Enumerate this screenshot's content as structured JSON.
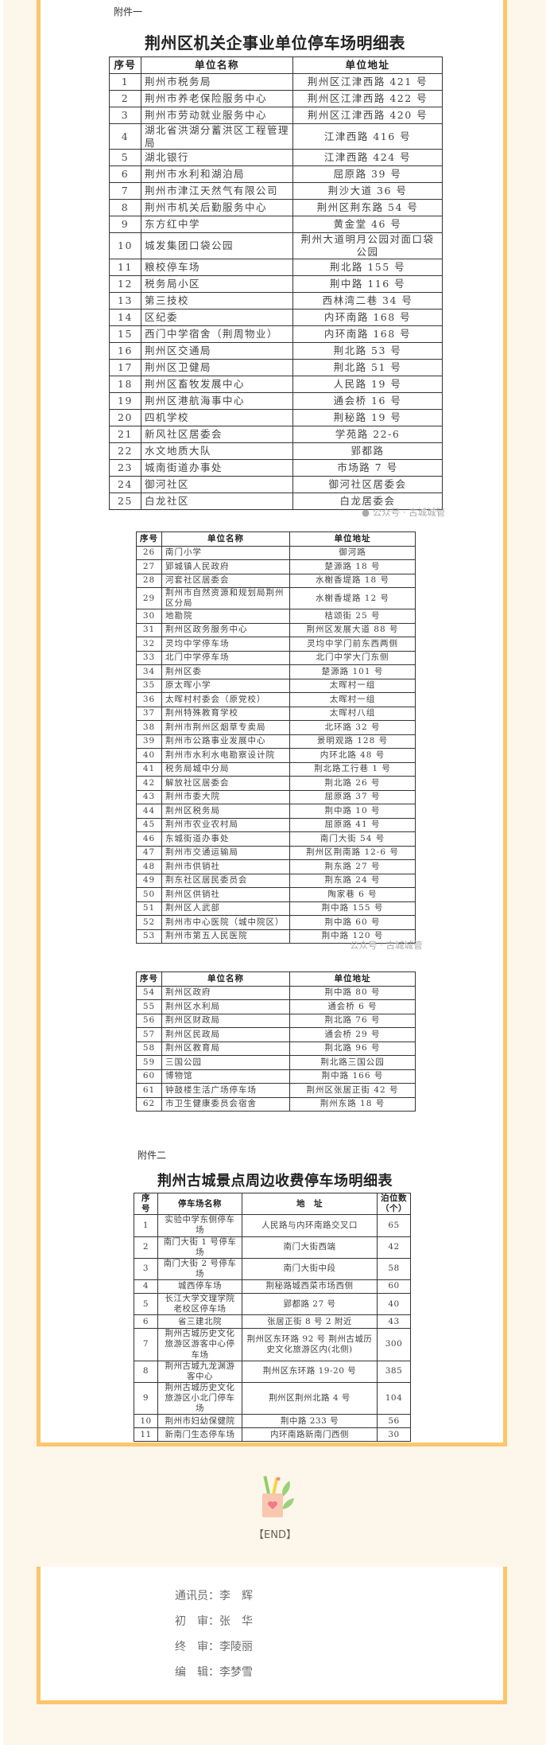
{
  "colors": {
    "accent_border": "#fcc66c",
    "page_background": "#fdf6ea"
  },
  "annex1": {
    "label": "附件一",
    "title": "荆州区机关企事业单位停车场明细表",
    "headers": [
      "序号",
      "单位名称",
      "单位地址"
    ],
    "rows": [
      [
        "1",
        "荆州市税务局",
        "荆州区江津西路 421 号"
      ],
      [
        "2",
        "荆州市养老保险服务中心",
        "荆州区江津西路 422 号"
      ],
      [
        "3",
        "荆州市劳动就业服务中心",
        "荆州区江津西路 420 号"
      ],
      [
        "4",
        "湖北省洪湖分蓄洪区工程管理局",
        "江津西路 416 号"
      ],
      [
        "5",
        "湖北银行",
        "江津西路 424 号"
      ],
      [
        "6",
        "荆州市水利和湖泊局",
        "屈原路 39 号"
      ],
      [
        "7",
        "荆州市津江天然气有限公司",
        "荆沙大道 36 号"
      ],
      [
        "8",
        "荆州市机关后勤服务中心",
        "荆州区荆东路 54 号"
      ],
      [
        "9",
        "东方红中学",
        "黄金堂 46 号"
      ],
      [
        "10",
        "城发集团口袋公园",
        "荆州大道明月公园对面口袋公园"
      ],
      [
        "11",
        "粮校停车场",
        "荆北路 155 号"
      ],
      [
        "12",
        "税务局小区",
        "荆中路 116 号"
      ],
      [
        "13",
        "第三技校",
        "西林湾二巷 34 号"
      ],
      [
        "14",
        "区纪委",
        "内环南路 168 号"
      ],
      [
        "15",
        "西门中学宿舍（荆周物业）",
        "内环南路 168 号"
      ],
      [
        "16",
        "荆州区交通局",
        "荆北路 53 号"
      ],
      [
        "17",
        "荆州区卫健局",
        "荆北路 51 号"
      ],
      [
        "18",
        "荆州区畜牧发展中心",
        "人民路 19 号"
      ],
      [
        "19",
        "荆州区港航海事中心",
        "通会桥 16 号"
      ],
      [
        "20",
        "四机学校",
        "荆秘路 19 号"
      ],
      [
        "21",
        "新风社区居委会",
        "学苑路 22-6"
      ],
      [
        "22",
        "水文地质大队",
        "郢都路"
      ],
      [
        "23",
        "城南街道办事处",
        "市场路 7 号"
      ],
      [
        "24",
        "御河社区",
        "御河社区居委会"
      ],
      [
        "25",
        "白龙社区",
        "白龙居委会"
      ]
    ],
    "rows_b": [
      [
        "26",
        "南门小学",
        "御河路"
      ],
      [
        "27",
        "郢城镇人民政府",
        "楚源路 18 号"
      ],
      [
        "28",
        "河套社区居委会",
        "水榭香堤路 18 号"
      ],
      [
        "29",
        "荆州市自然资源和规划局荆州区分局",
        "水榭香堤路 12 号"
      ],
      [
        "30",
        "地勘院",
        "桔颂街 25 号"
      ],
      [
        "31",
        "荆州区政务服务中心",
        "荆州区发展大道 88 号"
      ],
      [
        "32",
        "灵均中学停车场",
        "灵均中学门前东西两侧"
      ],
      [
        "33",
        "北门中学停车场",
        "北门中学大门东侧"
      ],
      [
        "34",
        "荆州区委",
        "楚源路 101 号"
      ],
      [
        "35",
        "原太晖小学",
        "太晖村一组"
      ],
      [
        "36",
        "太晖村村委会（原党校）",
        "太晖村一组"
      ],
      [
        "37",
        "荆州特殊教育学校",
        "太晖村八组"
      ],
      [
        "38",
        "荆州市荆州区烟草专卖局",
        "北环路 32 号"
      ],
      [
        "39",
        "荆州市公路事业发展中心",
        "景明观路 128 号"
      ],
      [
        "40",
        "荆州市水利水电勘察设计院",
        "内环北路 48 号"
      ],
      [
        "41",
        "税务局城中分局",
        "荆北路工行巷 1 号"
      ],
      [
        "42",
        "解放社区居委会",
        "荆北路 26 号"
      ],
      [
        "43",
        "荆州市委大院",
        "屈原路 37 号"
      ],
      [
        "44",
        "荆州区税务局",
        "荆中路 10 号"
      ],
      [
        "45",
        "荆州市农业农村局",
        "屈原路 41 号"
      ],
      [
        "46",
        "东城街道办事处",
        "南门大街 54 号"
      ],
      [
        "47",
        "荆州市交通运输局",
        "荆州区荆南路 12-6 号"
      ],
      [
        "48",
        "荆州市供销社",
        "荆东路 27 号"
      ],
      [
        "49",
        "荆东社区居民委员会",
        "荆东路 24 号"
      ],
      [
        "50",
        "荆州区供销社",
        "陶家巷 6 号"
      ],
      [
        "51",
        "荆州区人武部",
        "荆中路 155 号"
      ],
      [
        "52",
        "荆州市中心医院（城中院区）",
        "荆中路 60 号"
      ],
      [
        "53",
        "荆州市第五人民医院",
        "荆中路 120 号"
      ]
    ],
    "rows_c": [
      [
        "54",
        "荆州区政府",
        "荆中路 80 号"
      ],
      [
        "55",
        "荆州区水利局",
        "通会桥 6 号"
      ],
      [
        "56",
        "荆州区财政局",
        "荆北路 76 号"
      ],
      [
        "57",
        "荆州区民政局",
        "通会桥 29 号"
      ],
      [
        "58",
        "荆州区教育局",
        "荆北路 96 号"
      ],
      [
        "59",
        "三国公园",
        "荆北路三国公园"
      ],
      [
        "60",
        "博物馆",
        "荆中路 166 号"
      ],
      [
        "61",
        "钟鼓楼生活广场停车场",
        "荆州区张居正街 42 号"
      ],
      [
        "62",
        "市卫生健康委员会宿舍",
        "荆州东路 18 号"
      ]
    ]
  },
  "annex2": {
    "label": "附件二",
    "title": "荆州古城景点周边收费停车场明细表",
    "headers": [
      "序号",
      "停车场名称",
      "地　址",
      "泊位数（个）"
    ],
    "rows": [
      [
        "1",
        "实验中学东侧停车场",
        "人民路与内环南路交叉口",
        "65"
      ],
      [
        "2",
        "南门大街 1 号停车场",
        "南门大街西端",
        "42"
      ],
      [
        "3",
        "南门大街 2 号停车场",
        "南门大街中段",
        "58"
      ],
      [
        "4",
        "城西停车场",
        "荆秘路城西菜市场西侧",
        "60"
      ],
      [
        "5",
        "长江大学文理学院老校区停车场",
        "郢都路 27 号",
        "40"
      ],
      [
        "6",
        "省三建北院",
        "张居正街 8 号 2 附近",
        "43"
      ],
      [
        "7",
        "荆州古城历史文化旅游区游客中心停车场",
        "荆州区东环路 92 号 荆州古城历史文化旅游区内(北侧)",
        "300"
      ],
      [
        "8",
        "荆州古城九龙渊游客中心",
        "荆州区东环路 19-20 号",
        "385"
      ],
      [
        "9",
        "荆州古城历史文化旅游区小北门停车场",
        "荆州区荆州北路 4 号",
        "104"
      ],
      [
        "10",
        "荆州市妇幼保健院",
        "荆中路 233 号",
        "56"
      ],
      [
        "11",
        "新南门生态停车场",
        "内环南路新南门西侧",
        "30"
      ]
    ]
  },
  "watermark": "公众号 · 古城城管",
  "end_mark": "【END】",
  "credits": [
    "通讯员：李　辉",
    "初　审：张　华",
    "终　审：李陵丽",
    "编　辑：李梦雪"
  ]
}
